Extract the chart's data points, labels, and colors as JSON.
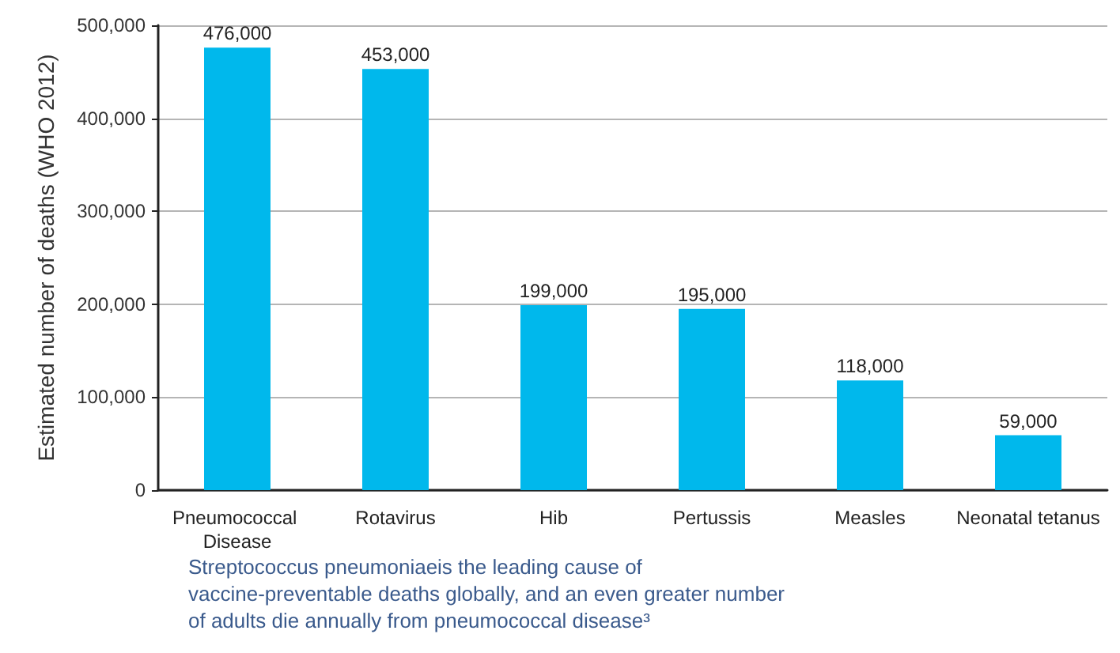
{
  "chart_data": {
    "type": "bar",
    "ylabel": "Estimated number of deaths (WHO 2012)",
    "categories": [
      "Pneumococcal Disease",
      "Rotavirus",
      "Hib",
      "Pertussis",
      "Measles",
      "Neonatal tetanus"
    ],
    "values": [
      476000,
      453000,
      199000,
      195000,
      118000,
      59000
    ],
    "color": "#00b8ec",
    "value_labels": [
      "476,000",
      "453,000",
      "199,000",
      "195,000",
      "118,000",
      "59,000"
    ],
    "ylim": [
      0,
      500000
    ],
    "yticks": [
      0,
      {
        "value": 100000,
        "label": "100,000"
      },
      {
        "value": 200000,
        "label": "200,000"
      },
      {
        "value": 300000,
        "label": "300,000"
      },
      {
        "value": 400000,
        "label": "400,000"
      },
      {
        "value": 500000,
        "label": "500,000"
      }
    ],
    "grid": "y",
    "annotations": [
      "Streptococcus pneumoniaeis the leading cause of vaccine-preventable deaths globally, and an even greater number of adults die annually from pneumococcal disease³"
    ]
  }
}
